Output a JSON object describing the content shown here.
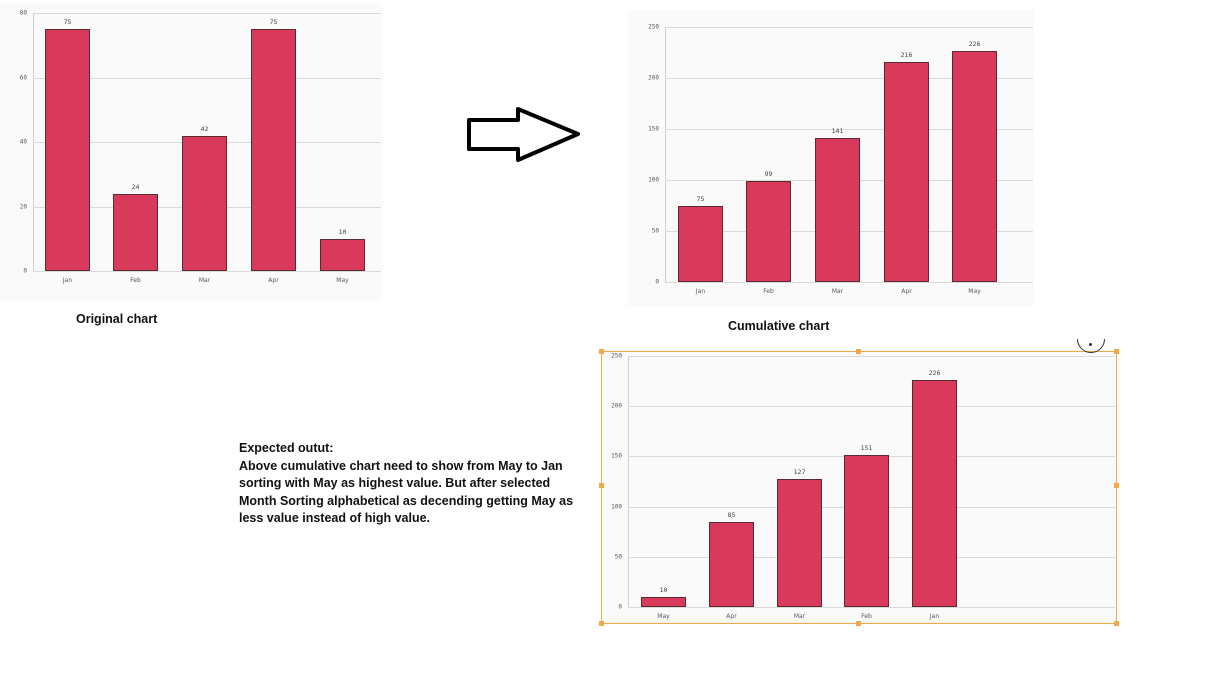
{
  "chart_data": [
    {
      "type": "bar",
      "title": "Original chart",
      "categories": [
        "Jan",
        "Feb",
        "Mar",
        "Apr",
        "May"
      ],
      "values": [
        75,
        24,
        42,
        75,
        10
      ],
      "xlabel": "",
      "ylabel": "",
      "ylim": [
        0,
        80
      ],
      "yticks": [
        0,
        20,
        40,
        60,
        80
      ],
      "grid": true,
      "bar_color": "#d9395b",
      "data_labels": [
        "75",
        "24",
        "42",
        "75",
        "10"
      ]
    },
    {
      "type": "bar",
      "title": "Cumulative chart",
      "categories": [
        "Jan",
        "Feb",
        "Mar",
        "Apr",
        "May"
      ],
      "values": [
        75,
        99,
        141,
        216,
        226
      ],
      "xlabel": "",
      "ylabel": "",
      "ylim": [
        0,
        250
      ],
      "yticks": [
        0,
        50,
        100,
        150,
        200,
        250
      ],
      "grid": true,
      "bar_color": "#d9395b",
      "data_labels": [
        "75",
        "99",
        "141",
        "216",
        "226"
      ]
    },
    {
      "type": "bar",
      "title": "",
      "categories": [
        "May",
        "Apr",
        "Mar",
        "Feb",
        "Jan"
      ],
      "values": [
        10,
        85,
        127,
        151,
        226
      ],
      "xlabel": "",
      "ylabel": "",
      "ylim": [
        0,
        250
      ],
      "yticks": [
        0,
        50,
        100,
        150,
        200,
        250
      ],
      "grid": true,
      "bar_color": "#d9395b",
      "selected": true,
      "data_labels": [
        "10",
        "85",
        "127",
        "151",
        "226"
      ]
    }
  ],
  "captions": {
    "original": "Original chart",
    "cumulative": "Cumulative chart"
  },
  "note": {
    "heading": "Expected outut:",
    "body": "Above cumulative chart need to show from May to Jan sorting with May as highest value. But after selected Month Sorting alphabetical as decending getting May as less value instead of high value."
  },
  "icons": {
    "arrow": "right-arrow-icon",
    "focus": "focus-mode-icon"
  },
  "colors": {
    "bar": "#d9395b",
    "bar_border": "#5a2a33",
    "selection": "#f0a84a",
    "panel_bg": "#fafafa",
    "grid": "#d9d9d9"
  }
}
